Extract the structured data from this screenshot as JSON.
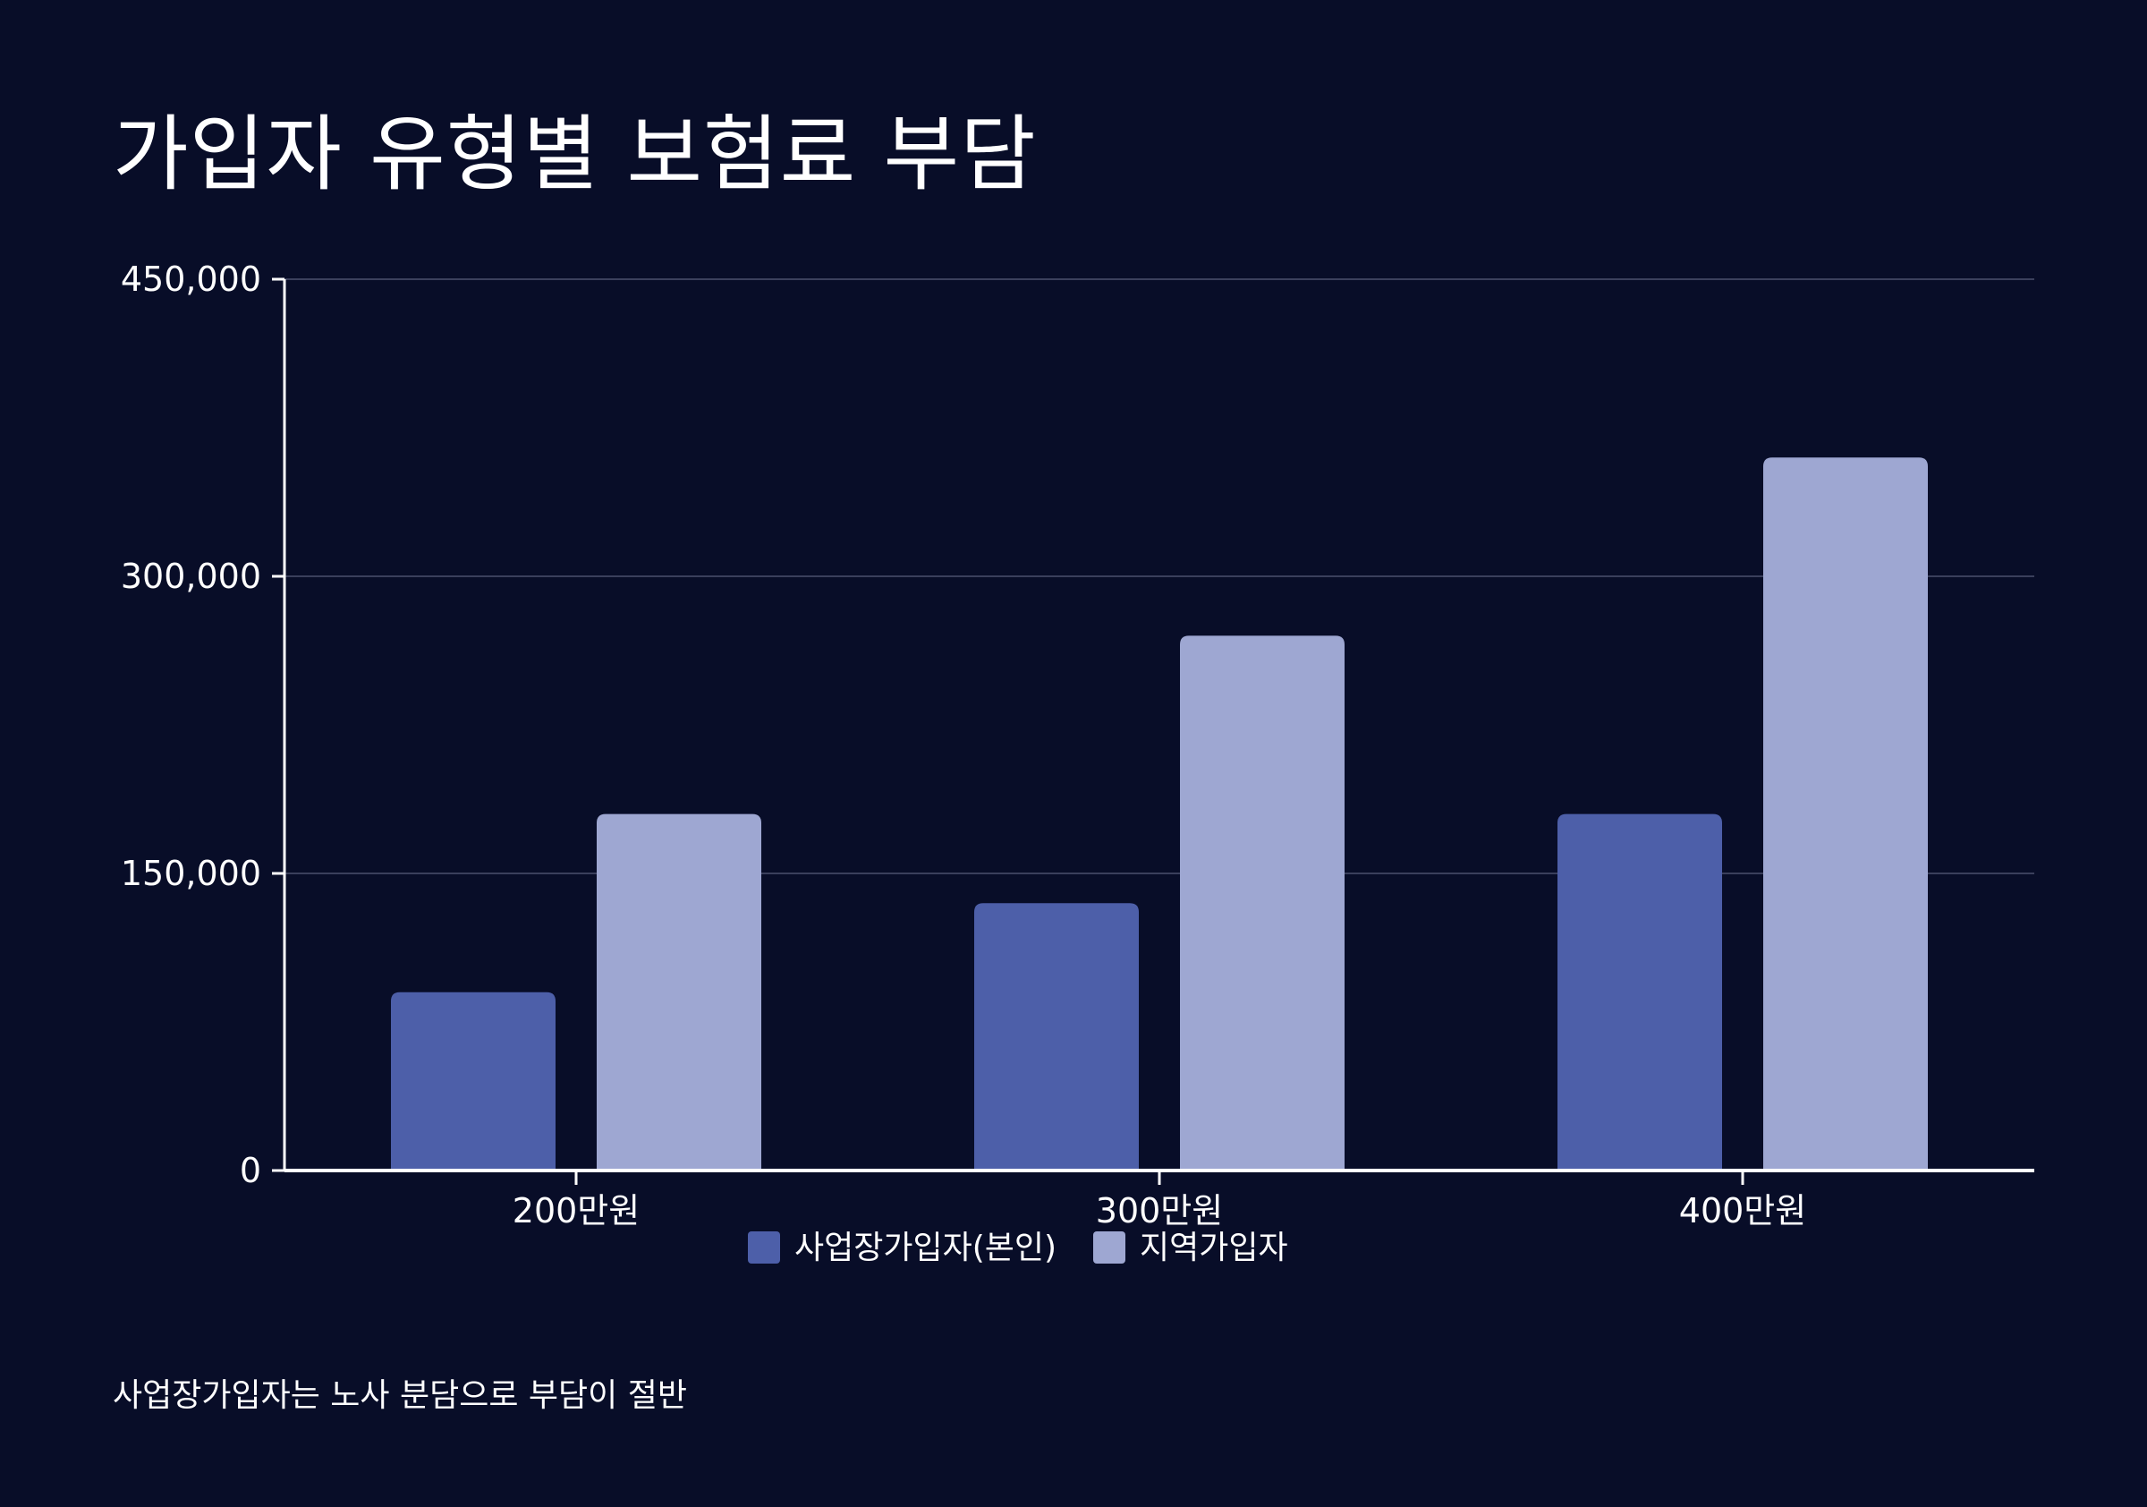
{
  "chart_data": {
    "type": "bar",
    "title": "가입자 유형별 보험료 부담",
    "categories": [
      "200만원",
      "300만원",
      "400만원"
    ],
    "series": [
      {
        "name": "사업장가입자(본인)",
        "values": [
          90000,
          135000,
          180000
        ],
        "color": "#4d5fa9"
      },
      {
        "name": "지역가입자",
        "values": [
          180000,
          270000,
          360000
        ],
        "color": "#9ea7d2"
      }
    ],
    "ylim": [
      0,
      450000
    ],
    "yticks": [
      "0",
      "150,000",
      "300,000",
      "450,000"
    ],
    "ytick_values": [
      0,
      150000,
      300000,
      450000
    ],
    "grid": true,
    "legend": "bottom-center",
    "note": "사업장가입자는 노사 분담으로 부담이 절반"
  }
}
